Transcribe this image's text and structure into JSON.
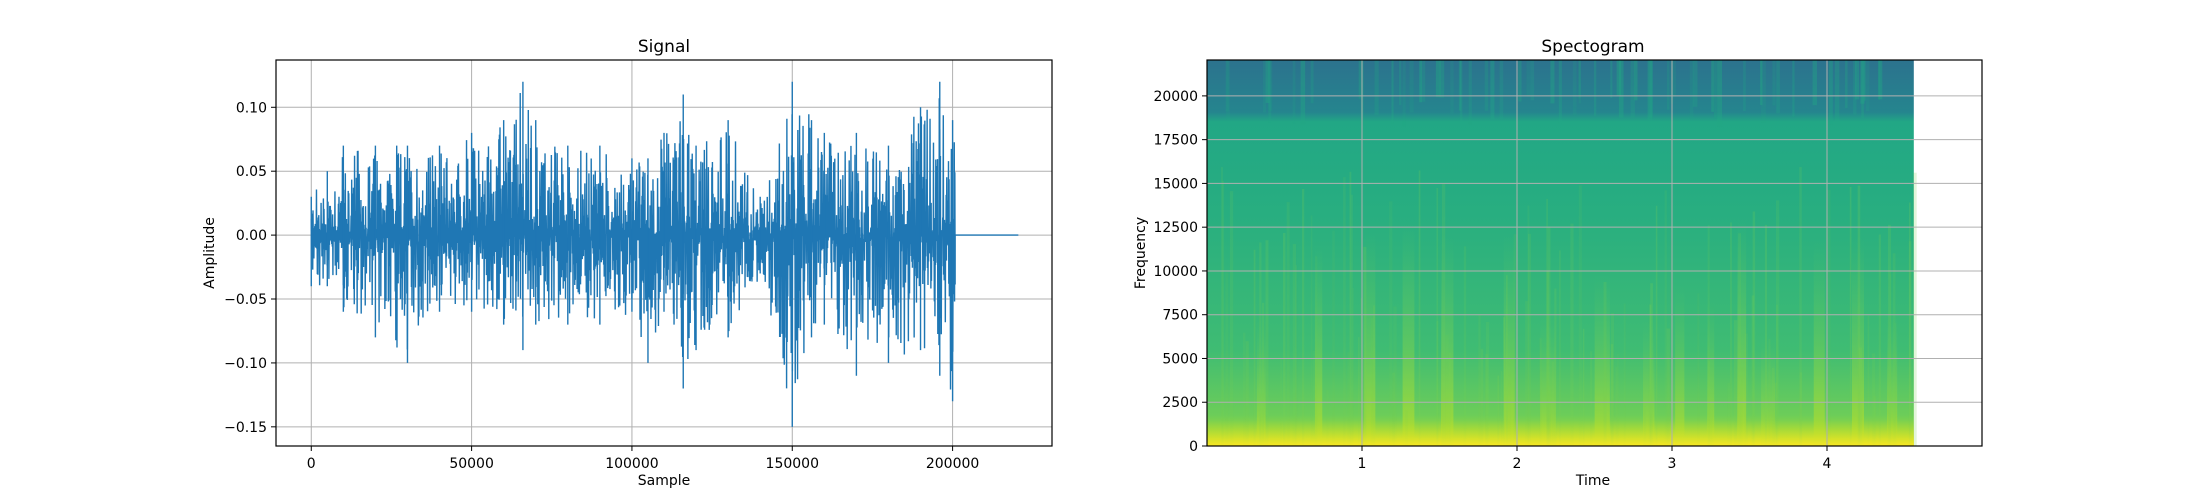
{
  "chart_data": [
    {
      "type": "line",
      "title": "Signal",
      "xlabel": "Sample",
      "ylabel": "Amplitude",
      "xlim": [
        -11000,
        231000
      ],
      "ylim": [
        -0.165,
        0.137
      ],
      "xticks": [
        0,
        50000,
        100000,
        150000,
        200000
      ],
      "xtick_labels": [
        "0",
        "50000",
        "100000",
        "150000",
        "200000"
      ],
      "yticks": [
        -0.15,
        -0.1,
        -0.05,
        0.0,
        0.05,
        0.1
      ],
      "ytick_labels": [
        "−0.15",
        "−0.10",
        "−0.05",
        "0.00",
        "0.05",
        "0.10"
      ],
      "grid": true,
      "color": "#1f77b4",
      "signal_end_sample": 200800,
      "trailing_silence_end_sample": 220500,
      "envelope_x": [
        0,
        5000,
        10000,
        20000,
        30000,
        40000,
        50000,
        60000,
        66000,
        70000,
        80000,
        90000,
        100000,
        105000,
        110000,
        116000,
        120000,
        130000,
        140000,
        150000,
        156000,
        160000,
        170000,
        180000,
        190000,
        196000,
        200000
      ],
      "envelope_max": [
        0.03,
        0.05,
        0.07,
        0.07,
        0.07,
        0.07,
        0.08,
        0.09,
        0.12,
        0.09,
        0.07,
        0.07,
        0.06,
        0.06,
        0.08,
        0.11,
        0.07,
        0.09,
        0.03,
        0.12,
        0.09,
        0.08,
        0.08,
        0.07,
        0.1,
        0.12,
        0.09
      ],
      "envelope_min": [
        -0.04,
        -0.04,
        -0.06,
        -0.08,
        -0.1,
        -0.06,
        -0.06,
        -0.07,
        -0.09,
        -0.07,
        -0.07,
        -0.07,
        -0.06,
        -0.1,
        -0.06,
        -0.12,
        -0.09,
        -0.08,
        -0.03,
        -0.15,
        -0.08,
        -0.07,
        -0.11,
        -0.1,
        -0.09,
        -0.11,
        -0.13
      ]
    },
    {
      "type": "heatmap",
      "title": "Spectogram",
      "xlabel": "Time",
      "ylabel": "Frequency",
      "xlim": [
        0,
        5
      ],
      "ylim": [
        0,
        22050
      ],
      "data_xlim": [
        0,
        4.56
      ],
      "xticks": [
        1,
        2,
        3,
        4
      ],
      "xtick_labels": [
        "1",
        "2",
        "3",
        "4"
      ],
      "yticks": [
        0,
        2500,
        5000,
        7500,
        10000,
        12500,
        15000,
        17500,
        20000
      ],
      "ytick_labels": [
        "0",
        "2500",
        "5000",
        "7500",
        "10000",
        "12500",
        "15000",
        "17500",
        "20000"
      ],
      "grid": true,
      "colormap": "viridis",
      "bright_time_bands": [
        0.35,
        0.72,
        1.05,
        1.3,
        1.55,
        1.95,
        2.2,
        2.55,
        2.85,
        3.05,
        3.25,
        3.45,
        3.62,
        3.95,
        4.2,
        4.42
      ],
      "high_freq_cutoff": 20000
    }
  ]
}
